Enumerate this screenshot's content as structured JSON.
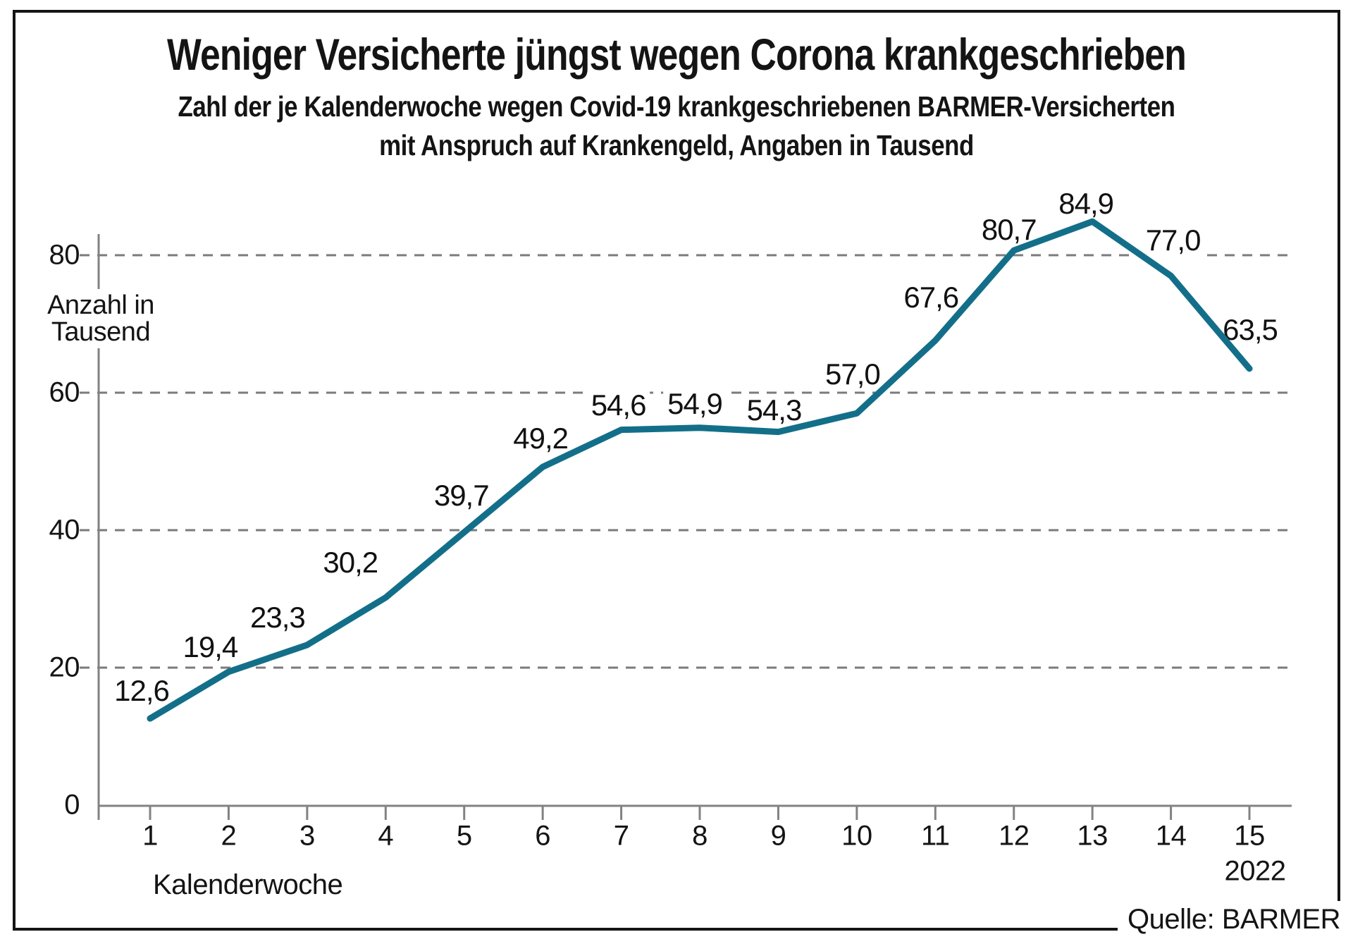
{
  "header": {
    "title": "Weniger Versicherte jüngst wegen Corona krankgeschrieben",
    "subtitle_line1": "Zahl der je Kalenderwoche wegen Covid-19 krankgeschriebenen BARMER-Versicherten",
    "subtitle_line2": "mit Anspruch auf Krankengeld, Angaben in Tausend"
  },
  "source": "Quelle: BARMER",
  "chart_data": {
    "type": "line",
    "title": "Weniger Versicherte jüngst wegen Corona krankgeschrieben",
    "categories": [
      "1",
      "2",
      "3",
      "4",
      "5",
      "6",
      "7",
      "8",
      "9",
      "10",
      "11",
      "12",
      "13",
      "14",
      "15"
    ],
    "values": [
      12.6,
      19.4,
      23.3,
      30.2,
      39.7,
      49.2,
      54.6,
      54.9,
      54.3,
      57.0,
      67.6,
      80.7,
      84.9,
      77.0,
      63.5
    ],
    "point_labels": [
      "12,6",
      "19,4",
      "23,3",
      "30,2",
      "39,7",
      "49,2",
      "54,6",
      "54,9",
      "54,3",
      "57,0",
      "67,6",
      "80,7",
      "84,9",
      "77,0",
      "63,5"
    ],
    "xlabel": "Kalenderwoche",
    "x_axis_suffix": "2022",
    "ylabel": "Anzahl in Tausend",
    "ylabel_lines": [
      "Anzahl in",
      "Tausend"
    ],
    "y_ticks": [
      0,
      20,
      40,
      60,
      80
    ],
    "ylim": [
      0,
      85
    ],
    "grid": "horizontal-dashed",
    "legend": "none",
    "line_color": "#136f89",
    "axis_color": "#828282",
    "grid_color": "#7b7b7b"
  }
}
